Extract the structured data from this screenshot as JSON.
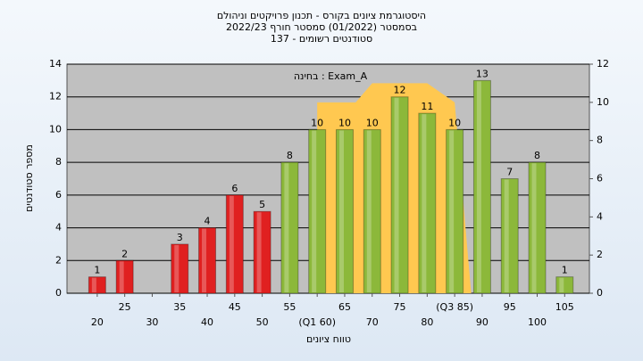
{
  "chart_data": {
    "type": "bar",
    "title": "היסטוגרמת ציונים בקורס - תכנון פרויקטים וניהולם",
    "subtitle": "בסמסטר  (01/2022)  סמסטר חורף  2022/23",
    "subtitle2": "סטודנטים רשומים - 137",
    "annotation": "בחינה : Exam_A",
    "ylabel": "מספר סטודנטים",
    "xlabel": "טווח ציונים",
    "x": [
      20,
      25,
      30,
      35,
      40,
      45,
      50,
      55,
      60,
      65,
      70,
      75,
      80,
      85,
      90,
      95,
      100,
      105
    ],
    "values": [
      1,
      2,
      null,
      3,
      4,
      6,
      5,
      8,
      10,
      10,
      10,
      12,
      11,
      10,
      13,
      7,
      8,
      1
    ],
    "colors": [
      "#e02020",
      "#e02020",
      "#e02020",
      "#e02020",
      "#e02020",
      "#e02020",
      "#e02020",
      "#8cb83a",
      "#8cb83a",
      "#8cb83a",
      "#8cb83a",
      "#8cb83a",
      "#8cb83a",
      "#8cb83a",
      "#8cb83a",
      "#8cb83a",
      "#8cb83a",
      "#8cb83a"
    ],
    "xlim": [
      14.5,
      109.5
    ],
    "xticks": [
      20,
      25,
      30,
      35,
      40,
      45,
      50,
      55,
      {
        "value": 60,
        "label": "(Q1 60)"
      },
      65,
      70,
      75,
      80,
      {
        "value": 85,
        "label": "(Q3 85)"
      },
      90,
      95,
      100,
      105
    ],
    "ylim": [
      0,
      14
    ],
    "yticks": [
      0,
      2,
      4,
      6,
      8,
      10,
      12,
      14
    ],
    "y2lim": [
      0,
      12
    ],
    "y2ticks": [
      0,
      2,
      4,
      6,
      8,
      10,
      12
    ],
    "area": {
      "color": "#ffc850",
      "axis": "y2",
      "x": [
        60,
        67,
        70,
        80,
        85,
        88
      ],
      "values": [
        10,
        10,
        11,
        11,
        10,
        0
      ]
    },
    "grid": true
  }
}
